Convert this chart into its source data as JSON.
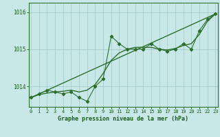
{
  "hours": [
    0,
    1,
    2,
    3,
    4,
    5,
    6,
    7,
    8,
    9,
    10,
    11,
    12,
    13,
    14,
    15,
    16,
    17,
    18,
    19,
    20,
    21,
    22,
    23
  ],
  "pressure": [
    1013.7,
    1013.8,
    1013.9,
    1013.85,
    1013.8,
    1013.85,
    1013.7,
    1013.6,
    1014.0,
    1014.2,
    1015.35,
    1015.15,
    1015.0,
    1015.0,
    1015.0,
    1015.15,
    1015.0,
    1014.95,
    1015.0,
    1015.15,
    1015.0,
    1015.5,
    1015.8,
    1015.95
  ],
  "smooth": [
    1013.7,
    1013.78,
    1013.82,
    1013.85,
    1013.87,
    1013.9,
    1013.85,
    1013.9,
    1014.05,
    1014.35,
    1014.7,
    1014.9,
    1015.0,
    1015.05,
    1015.05,
    1015.05,
    1015.0,
    1014.98,
    1015.02,
    1015.1,
    1015.15,
    1015.4,
    1015.75,
    1015.95
  ],
  "trend_x": [
    0,
    23
  ],
  "trend_y": [
    1013.7,
    1015.95
  ],
  "line_color": "#2d6e2d",
  "bg_color": "#c8e8e8",
  "grid_color": "#a0c8c8",
  "text_color": "#1a5c1a",
  "xlabel": "Graphe pression niveau de la mer (hPa)",
  "yticks": [
    1014,
    1015,
    1016
  ],
  "ylim": [
    1013.45,
    1016.25
  ],
  "xlim": [
    -0.3,
    23.3
  ]
}
